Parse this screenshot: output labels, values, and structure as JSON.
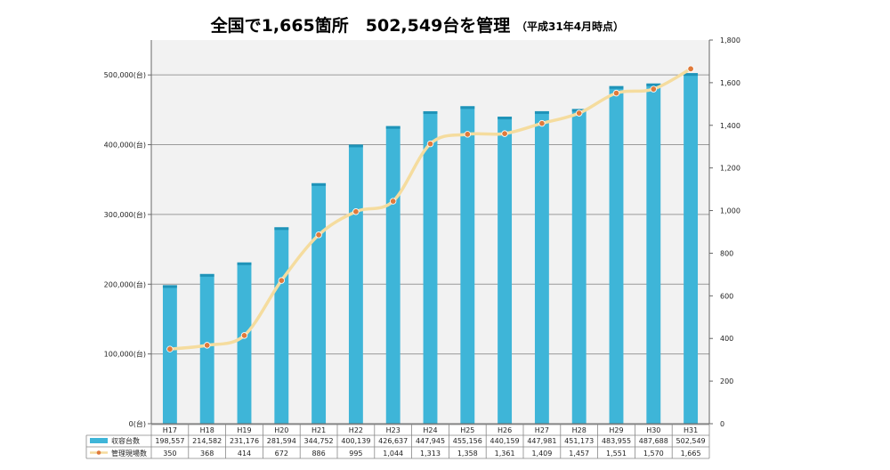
{
  "title": "全国で1,665箇所　502,549台を管理",
  "subtitle": "（平成31年4月時点）",
  "chart_data": {
    "type": "bar",
    "categories": [
      "H17",
      "H18",
      "H19",
      "H20",
      "H21",
      "H22",
      "H23",
      "H24",
      "H25",
      "H26",
      "H27",
      "H28",
      "H29",
      "H30",
      "H31"
    ],
    "series": [
      {
        "name": "収容台数",
        "type": "bar",
        "axis": "left",
        "color": "#3eb5d8",
        "values": [
          198557,
          214582,
          231176,
          281594,
          344752,
          400139,
          426637,
          447945,
          455156,
          440159,
          447981,
          451173,
          483955,
          487688,
          502549
        ],
        "labels": [
          "198,557",
          "214,582",
          "231,176",
          "281,594",
          "344,752",
          "400,139",
          "426,637",
          "447,945",
          "455,156",
          "440,159",
          "447,981",
          "451,173",
          "483,955",
          "487,688",
          "502,549"
        ]
      },
      {
        "name": "管理現場数",
        "type": "line",
        "axis": "right",
        "color": "#f5dc9e",
        "marker_color": "#e07a3a",
        "values": [
          350,
          368,
          414,
          672,
          886,
          995,
          1044,
          1313,
          1358,
          1361,
          1409,
          1457,
          1551,
          1570,
          1665
        ],
        "labels": [
          "350",
          "368",
          "414",
          "672",
          "886",
          "995",
          "1,044",
          "1,313",
          "1,358",
          "1,361",
          "1,409",
          "1,457",
          "1,551",
          "1,570",
          "1,665"
        ]
      }
    ],
    "y_left": {
      "ylim": [
        0,
        550000
      ],
      "ticks": [
        0,
        100000,
        200000,
        300000,
        400000,
        500000
      ],
      "tick_labels": [
        "0(台)",
        "100,000(台)",
        "200,000(台)",
        "300,000(台)",
        "400,000(台)",
        "500,000(台)"
      ]
    },
    "y_right": {
      "ylim": [
        0,
        1800
      ],
      "ticks": [
        0,
        200,
        400,
        600,
        800,
        1000,
        1200,
        1400,
        1600,
        1800
      ],
      "tick_labels": [
        "0",
        "200",
        "400",
        "600",
        "800",
        "1,000",
        "1,200",
        "1,400",
        "1,600",
        "1,800"
      ]
    },
    "grid": true,
    "legend": "data-table"
  }
}
